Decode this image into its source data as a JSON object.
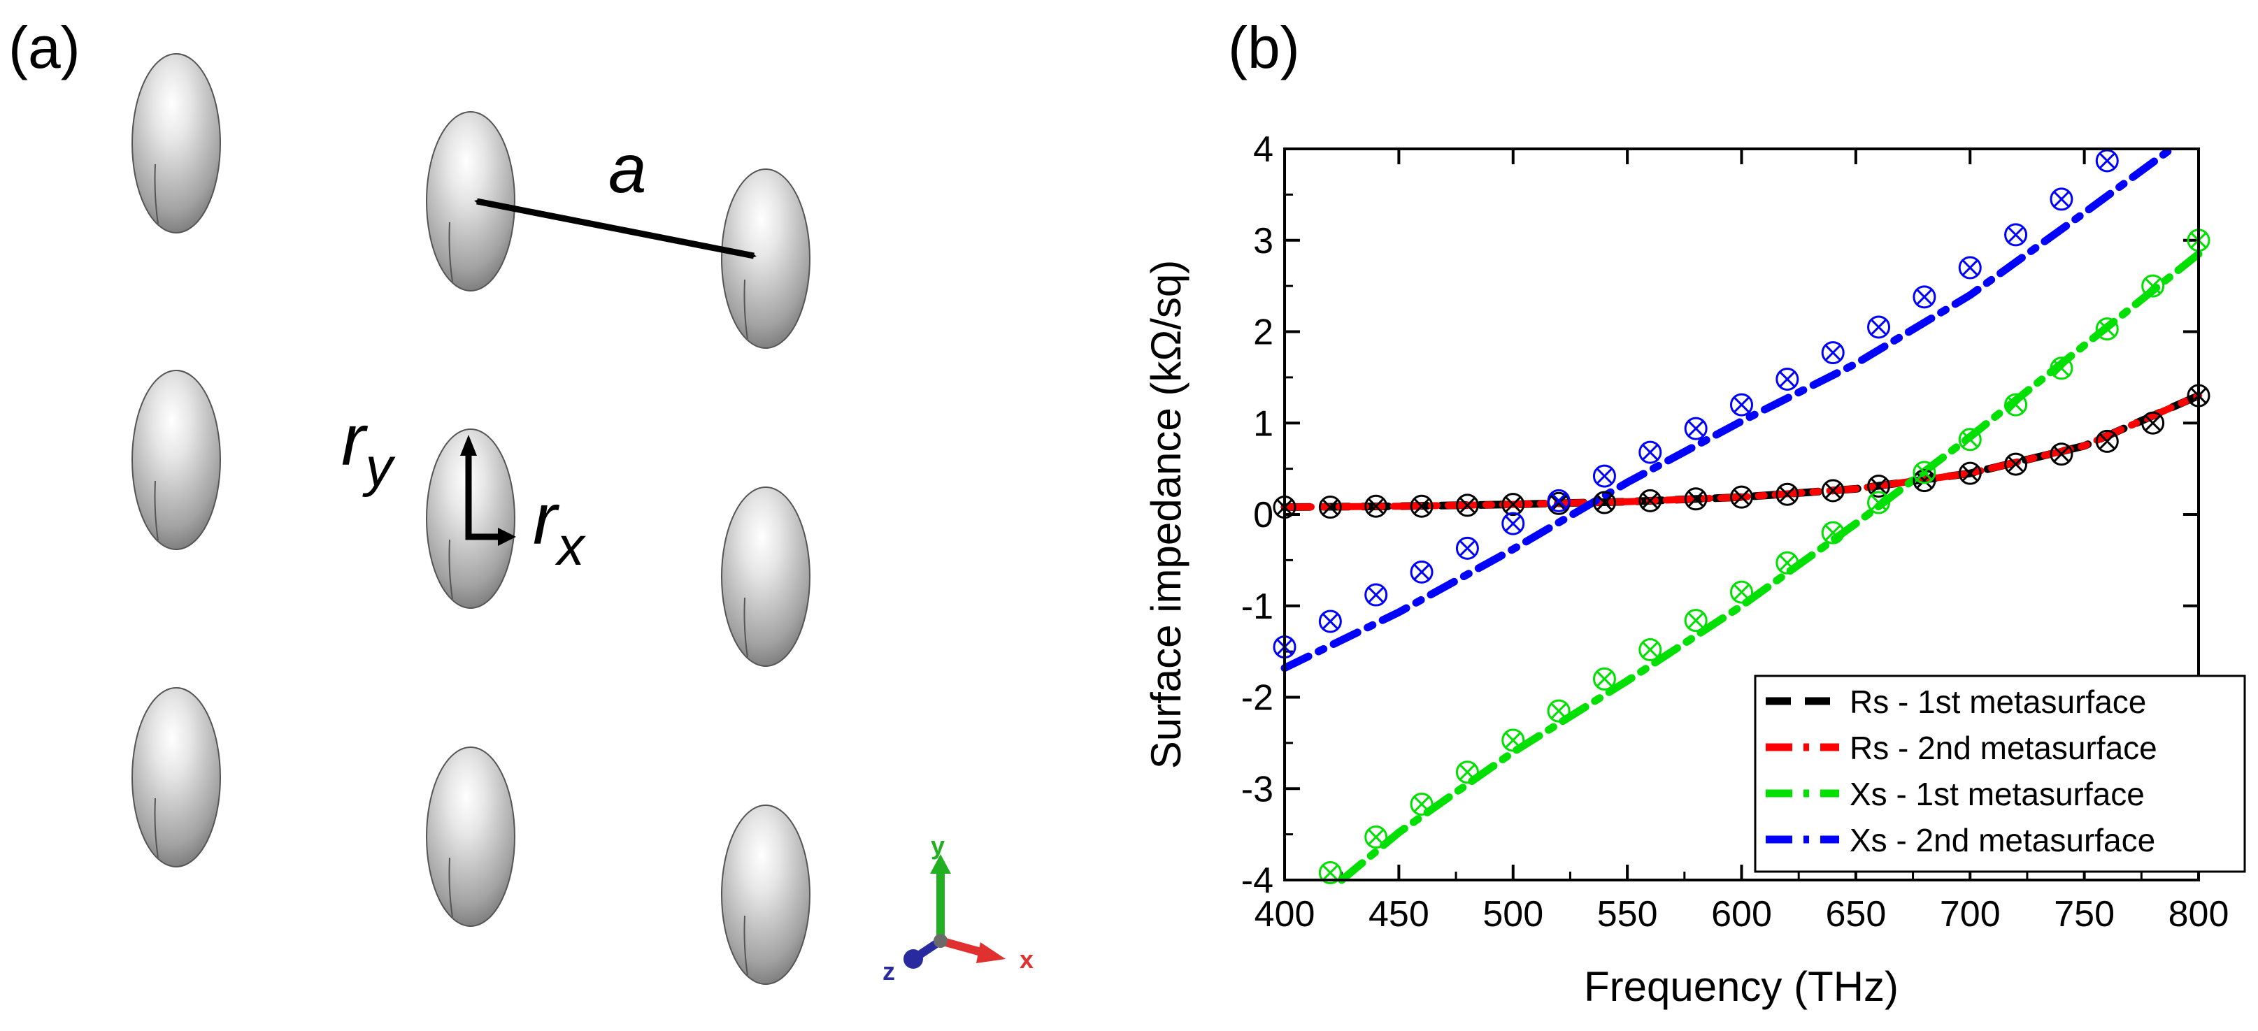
{
  "panel_a": {
    "label": "(a)",
    "lattice_label": "a",
    "ry_main": "r",
    "ry_sub": "y",
    "rx_main": "r",
    "rx_sub": "x",
    "axes_triad": {
      "x": "x",
      "y": "y",
      "z": "z"
    },
    "colors": {
      "x_axis": "#e03030",
      "y_axis": "#22b022",
      "z_axis": "#2a2aa0"
    }
  },
  "panel_b": {
    "label": "(b)"
  },
  "chart_data": {
    "type": "line",
    "title": "",
    "xlabel": "Frequency (THz)",
    "ylabel": "Surface impedance (kΩ/sq)",
    "xlim": [
      400,
      800
    ],
    "ylim": [
      -4,
      4
    ],
    "xticks": [
      400,
      450,
      500,
      550,
      600,
      650,
      700,
      750,
      800
    ],
    "yticks": [
      -4,
      -3,
      -2,
      -1,
      0,
      1,
      2,
      3,
      4
    ],
    "legend_position": "bottom-right",
    "series": [
      {
        "name": "Rs - 1st metasurface",
        "color": "#000000",
        "dash": "dash",
        "marker": "x-circle",
        "x": [
          400,
          450,
          500,
          550,
          600,
          650,
          700,
          750,
          800
        ],
        "y": [
          0.08,
          0.09,
          0.11,
          0.14,
          0.19,
          0.28,
          0.45,
          0.75,
          1.3
        ]
      },
      {
        "name": "Rs - 2nd metasurface",
        "color": "#ff0000",
        "dash": "dashdot",
        "marker": "none",
        "x": [
          400,
          450,
          500,
          550,
          600,
          650,
          700,
          750,
          800
        ],
        "y": [
          0.08,
          0.09,
          0.11,
          0.14,
          0.19,
          0.28,
          0.45,
          0.75,
          1.3
        ]
      },
      {
        "name": "Xs - 1st metasurface",
        "color": "#00e000",
        "dash": "dashdot",
        "marker": "x-circle",
        "x": [
          425,
          450,
          500,
          550,
          600,
          650,
          700,
          750,
          800
        ],
        "y": [
          -4.0,
          -3.48,
          -2.6,
          -1.82,
          -1.0,
          -0.1,
          0.85,
          1.85,
          2.85
        ]
      },
      {
        "name": "Xs - 2nd metasurface",
        "color": "#0000ff",
        "dash": "dashdot",
        "marker": "x-circle",
        "x": [
          400,
          450,
          500,
          550,
          600,
          650,
          700,
          750,
          788
        ],
        "y": [
          -1.68,
          -1.07,
          -0.38,
          0.35,
          1.02,
          1.65,
          2.4,
          3.3,
          4.0
        ]
      }
    ],
    "marker_points": [
      {
        "series": 0,
        "color": "#000000",
        "x": [
          400,
          420,
          440,
          460,
          480,
          500,
          520,
          540,
          560,
          580,
          600,
          620,
          640,
          660,
          680,
          700,
          720,
          740,
          760,
          780,
          800
        ],
        "y": [
          0.08,
          0.08,
          0.09,
          0.09,
          0.1,
          0.11,
          0.12,
          0.13,
          0.15,
          0.17,
          0.19,
          0.22,
          0.26,
          0.31,
          0.37,
          0.45,
          0.55,
          0.66,
          0.8,
          1.0,
          1.3
        ]
      },
      {
        "series": 2,
        "color": "#00e000",
        "x": [
          420,
          440,
          460,
          480,
          500,
          520,
          540,
          560,
          580,
          600,
          620,
          640,
          660,
          680,
          700,
          720,
          740,
          760,
          780,
          800
        ],
        "y": [
          -3.92,
          -3.53,
          -3.17,
          -2.82,
          -2.47,
          -2.15,
          -1.8,
          -1.48,
          -1.16,
          -0.85,
          -0.53,
          -0.2,
          0.13,
          0.46,
          0.82,
          1.2,
          1.6,
          2.03,
          2.5,
          3.0
        ]
      },
      {
        "series": 3,
        "color": "#0000ff",
        "x": [
          400,
          420,
          440,
          460,
          480,
          500,
          520,
          540,
          560,
          580,
          600,
          620,
          640,
          660,
          680,
          700,
          720,
          740,
          760
        ],
        "y": [
          -1.45,
          -1.17,
          -0.88,
          -0.63,
          -0.37,
          -0.1,
          0.15,
          0.42,
          0.68,
          0.94,
          1.2,
          1.48,
          1.77,
          2.05,
          2.38,
          2.7,
          3.06,
          3.45,
          3.87
        ]
      }
    ]
  }
}
